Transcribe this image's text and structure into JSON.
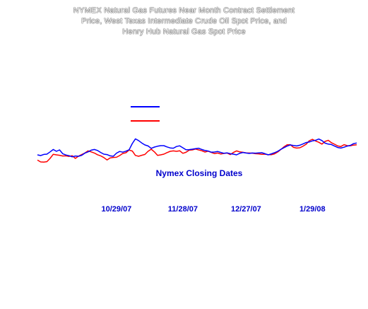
{
  "title": {
    "line1": "NYMEX Natural Gas Futures Near Month Contract Settlement",
    "line2": "Price, West Texas Intermediate Crude Oil Spot Price, and",
    "line3": "Henry Hub Natural Gas Spot Price"
  },
  "chart_data": {
    "type": "line",
    "title": "NYMEX Natural Gas Futures Near Month Contract Settlement Price, West Texas Intermediate Crude Oil Spot Price, and Henry Hub Natural Gas Spot Price",
    "xlabel": "Nymex Closing Dates",
    "x_tick_labels": [
      "10/29/07",
      "11/28/07",
      "12/27/07",
      "1/29/08"
    ],
    "x_tick_index": [
      25,
      46,
      66,
      87
    ],
    "y_tick_labels": [
      "",
      "",
      "",
      "",
      "",
      "",
      "",
      ""
    ],
    "legend_placement": "top-center",
    "colors": {
      "blue": "#0000ff",
      "red": "#ff0000",
      "axis_text": "#0000cc"
    },
    "series": [
      {
        "color": "#0000ff",
        "values": [
          66.5,
          66.0,
          66.8,
          67.0,
          68.6,
          70.3,
          69.0,
          70.0,
          67.3,
          66.4,
          65.9,
          65.1,
          65.7,
          65.5,
          66.2,
          67.7,
          68.6,
          69.8,
          70.3,
          69.6,
          68.2,
          67.0,
          66.7,
          65.8,
          65.5,
          67.7,
          68.9,
          68.4,
          69.1,
          70.1,
          74.5,
          77.8,
          76.6,
          74.9,
          73.5,
          72.8,
          71.1,
          72.0,
          72.6,
          73.0,
          73.0,
          72.1,
          71.4,
          71.2,
          72.4,
          72.9,
          71.5,
          70.1,
          70.2,
          70.5,
          70.9,
          71.2,
          70.3,
          69.6,
          69.2,
          68.4,
          68.5,
          68.9,
          68.2,
          67.6,
          67.9,
          67.3,
          67.0,
          66.5,
          67.6,
          68.2,
          67.8,
          67.5,
          67.8,
          67.7,
          67.9,
          68.0,
          67.3,
          66.5,
          67.2,
          68.0,
          69.0,
          70.4,
          71.6,
          72.7,
          73.5,
          73.1,
          72.8,
          73.3,
          74.2,
          75.2,
          75.6,
          76.4,
          76.8,
          77.7,
          76.6,
          74.8,
          74.1,
          73.8,
          72.7,
          71.7,
          71.3,
          71.9,
          72.7,
          73.2,
          74.4,
          74.9
        ]
      },
      {
        "color": "#ff0000",
        "values": [
          62.8,
          61.5,
          61.4,
          61.7,
          64.0,
          66.9,
          66.5,
          66.2,
          65.7,
          65.8,
          65.4,
          65.9,
          64.0,
          65.6,
          66.7,
          67.8,
          69.3,
          68.6,
          67.8,
          66.6,
          65.8,
          64.6,
          62.9,
          64.3,
          64.7,
          64.8,
          66.0,
          67.5,
          68.0,
          69.9,
          69.2,
          66.1,
          65.5,
          66.2,
          66.8,
          69.0,
          70.5,
          68.6,
          66.1,
          66.5,
          67.0,
          68.1,
          69.0,
          69.3,
          69.0,
          69.4,
          67.6,
          68.3,
          69.8,
          70.0,
          70.6,
          70.0,
          69.4,
          68.5,
          69.1,
          68.2,
          67.4,
          67.8,
          67.1,
          67.5,
          67.8,
          66.7,
          68.2,
          69.3,
          68.6,
          68.3,
          67.9,
          67.8,
          67.7,
          67.3,
          67.2,
          66.9,
          67.0,
          66.6,
          66.6,
          67.2,
          68.5,
          70.3,
          72.2,
          73.6,
          73.7,
          71.8,
          71.3,
          71.5,
          72.6,
          74.0,
          76.5,
          77.5,
          76.3,
          75.4,
          74.1,
          76.0,
          76.8,
          75.1,
          74.0,
          72.8,
          72.4,
          73.7,
          73.0,
          72.9,
          73.4,
          73.6
        ]
      }
    ]
  }
}
